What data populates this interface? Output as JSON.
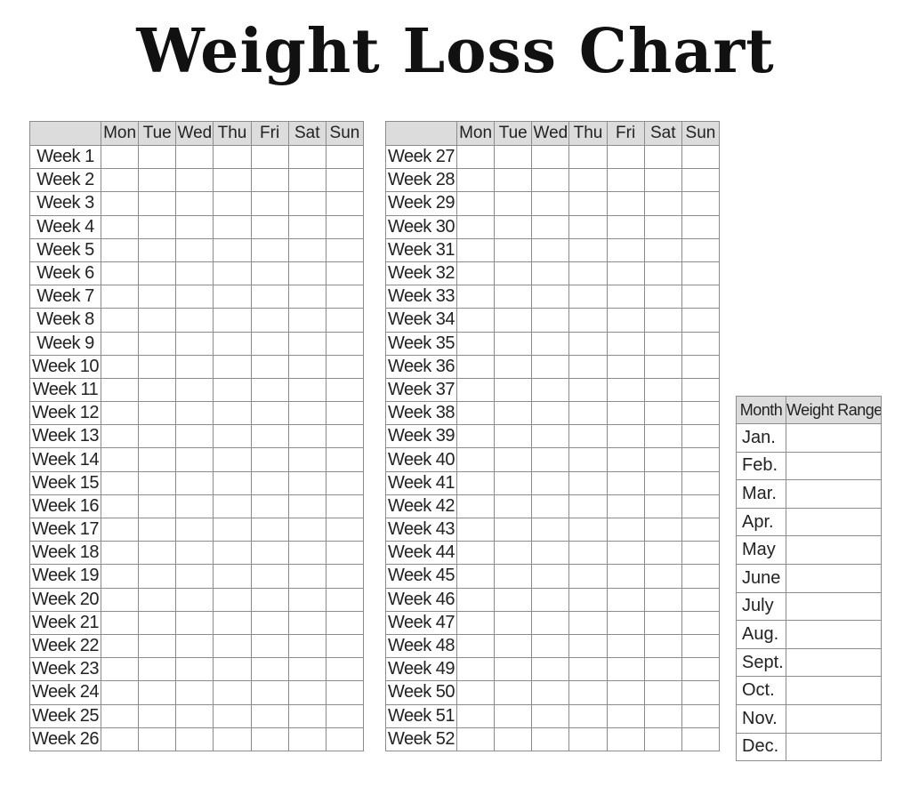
{
  "title": "Weight Loss Chart",
  "days": [
    "Mon",
    "Tue",
    "Wed",
    "Thu",
    "Fri",
    "Sat",
    "Sun"
  ],
  "weeks_left": [
    "Week 1",
    "Week 2",
    "Week 3",
    "Week 4",
    "Week 5",
    "Week 6",
    "Week 7",
    "Week 8",
    "Week 9",
    "Week 10",
    "Week 11",
    "Week 12",
    "Week 13",
    "Week 14",
    "Week 15",
    "Week 16",
    "Week 17",
    "Week 18",
    "Week 19",
    "Week 20",
    "Week 21",
    "Week 22",
    "Week 23",
    "Week 24",
    "Week 25",
    "Week 26"
  ],
  "weeks_right": [
    "Week 27",
    "Week 28",
    "Week 29",
    "Week 30",
    "Week 31",
    "Week 32",
    "Week 33",
    "Week 34",
    "Week 35",
    "Week 36",
    "Week 37",
    "Week 38",
    "Week 39",
    "Week 40",
    "Week 41",
    "Week 42",
    "Week 43",
    "Week 44",
    "Week 45",
    "Week 46",
    "Week 47",
    "Week 48",
    "Week 49",
    "Week 50",
    "Week 51",
    "Week 52"
  ],
  "month_table": {
    "header_month": "Month",
    "header_range": "Weight Range",
    "months": [
      "Jan.",
      "Feb.",
      "Mar.",
      "Apr.",
      "May",
      "June",
      "July",
      "Aug.",
      "Sept.",
      "Oct.",
      "Nov.",
      "Dec."
    ]
  }
}
